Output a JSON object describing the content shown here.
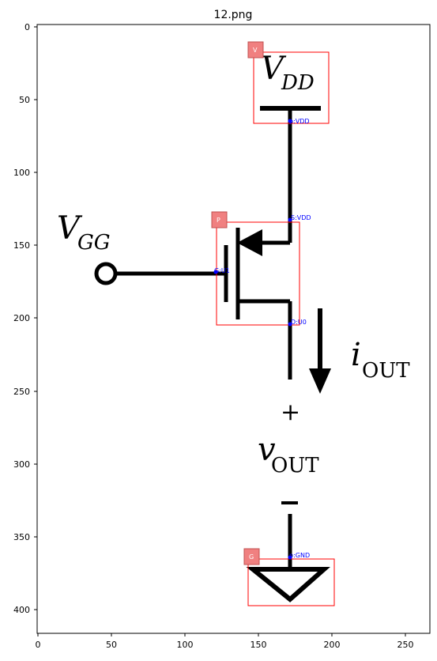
{
  "title": "12.png",
  "x_ticks": [
    "0",
    "50",
    "100",
    "150",
    "200",
    "250"
  ],
  "y_ticks": [
    "0",
    "50",
    "100",
    "150",
    "200",
    "250",
    "300",
    "350",
    "400"
  ],
  "circuit": {
    "vdd": {
      "main": "V",
      "sub": "DD"
    },
    "vgg": {
      "main": "V",
      "sub": "GG"
    },
    "iout": {
      "main": "i",
      "sub": "OUT"
    },
    "vout": {
      "main": "v",
      "sub": "OUT"
    },
    "plus": "+",
    "minus": "−"
  },
  "boxes": [
    {
      "id": "V",
      "label": "V"
    },
    {
      "id": "P",
      "label": "P"
    },
    {
      "id": "G",
      "label": "G"
    }
  ],
  "annotations": {
    "vdd_pin": "p:VDD",
    "source": "S:VDD",
    "gate": "G:U1",
    "drain": "D:U0",
    "gnd_pin": "p:GND"
  },
  "colors": {
    "box": "#ff0000",
    "box_label_bg": "#f08080",
    "annotation": "#0000ff",
    "wire": "#000000"
  }
}
